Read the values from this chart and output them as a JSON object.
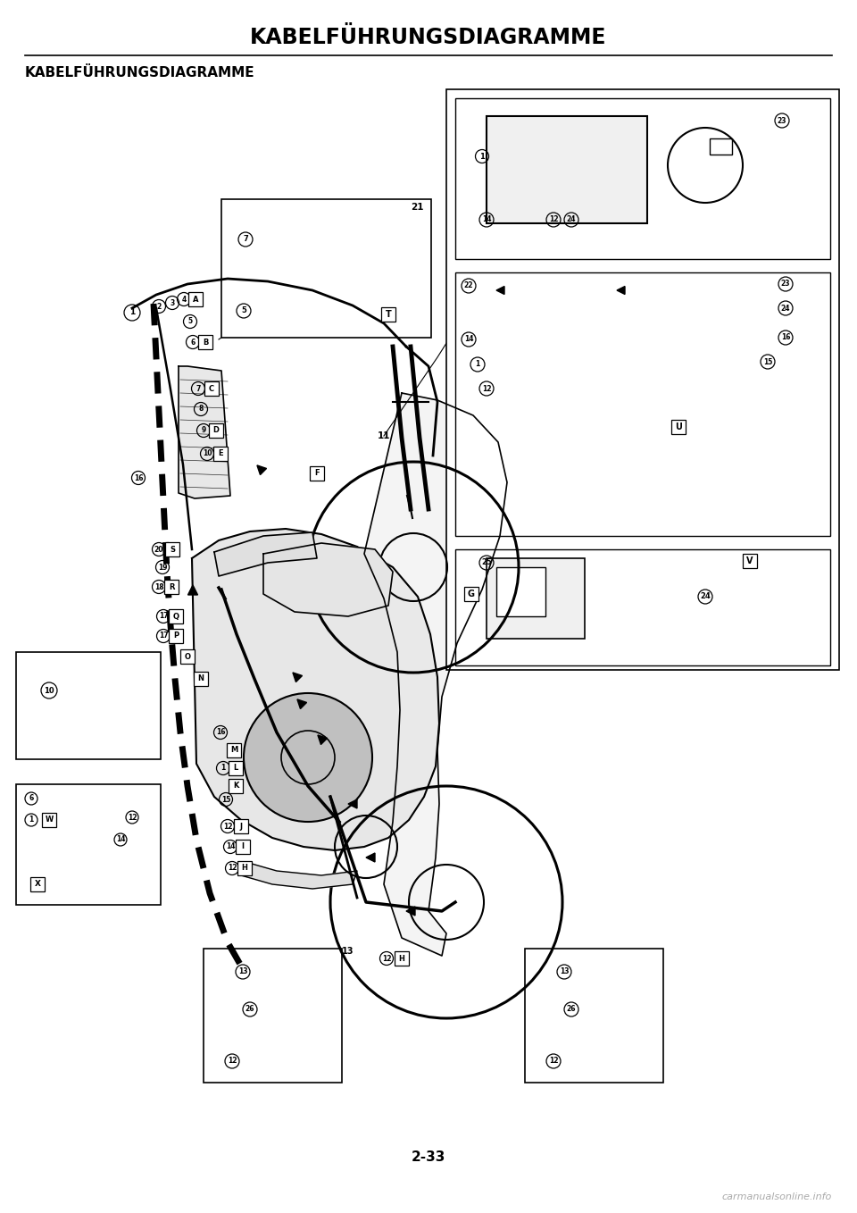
{
  "page_title": "KABELFÜHRUNGSDIAGRAMME",
  "section_title": "KABELFÜHRUNGSDIAGRAMME",
  "page_number": "2-33",
  "watermark": "carmanualsonline.info",
  "bg_color": "#ffffff",
  "title_fontsize": 17,
  "section_fontsize": 11,
  "page_num_fontsize": 11,
  "watermark_fontsize": 8,
  "line_color": "#000000",
  "fig_width": 9.6,
  "fig_height": 13.58,
  "dpi": 100
}
